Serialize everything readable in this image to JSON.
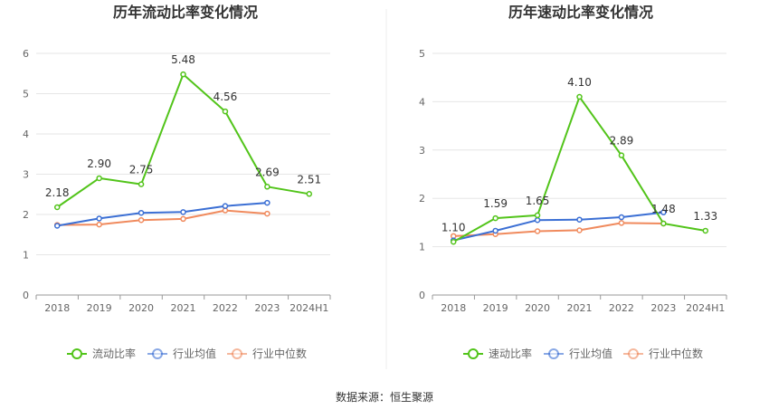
{
  "source_label": "数据来源：恒生聚源",
  "chart_data": [
    {
      "type": "line",
      "title": "历年流动比率变化情况",
      "categories": [
        "2018",
        "2019",
        "2020",
        "2021",
        "2022",
        "2023",
        "2024H1"
      ],
      "ylim": [
        0,
        6
      ],
      "yticks": [
        0,
        1,
        2,
        3,
        4,
        5,
        6
      ],
      "grid": true,
      "legend_position": "bottom",
      "series": [
        {
          "name": "流动比率",
          "color": "#52c41a",
          "values": [
            2.18,
            2.9,
            2.75,
            5.48,
            4.56,
            2.69,
            2.51
          ],
          "labels": [
            "2.18",
            "2.90",
            "2.75",
            "5.48",
            "4.56",
            "2.69",
            "2.51"
          ]
        },
        {
          "name": "行业均值",
          "color": "#3b6fd4",
          "values": [
            1.72,
            1.9,
            2.04,
            2.06,
            2.21,
            2.29,
            null
          ]
        },
        {
          "name": "行业中位数",
          "color": "#f08a5d",
          "values": [
            1.74,
            1.75,
            1.86,
            1.89,
            2.1,
            2.02,
            null
          ]
        }
      ]
    },
    {
      "type": "line",
      "title": "历年速动比率变化情况",
      "categories": [
        "2018",
        "2019",
        "2020",
        "2021",
        "2022",
        "2023",
        "2024H1"
      ],
      "ylim": [
        0,
        5
      ],
      "yticks": [
        0,
        1,
        2,
        3,
        4,
        5
      ],
      "grid": true,
      "legend_position": "bottom",
      "series": [
        {
          "name": "速动比率",
          "color": "#52c41a",
          "values": [
            1.1,
            1.59,
            1.65,
            4.1,
            2.89,
            1.48,
            1.33
          ],
          "labels": [
            "1.10",
            "1.59",
            "1.65",
            "4.10",
            "2.89",
            "1.48",
            "1.33"
          ]
        },
        {
          "name": "行业均值",
          "color": "#3b6fd4",
          "values": [
            1.13,
            1.33,
            1.55,
            1.56,
            1.61,
            1.71,
            null
          ]
        },
        {
          "name": "行业中位数",
          "color": "#f08a5d",
          "values": [
            1.22,
            1.26,
            1.32,
            1.34,
            1.49,
            1.48,
            null
          ]
        }
      ]
    }
  ]
}
